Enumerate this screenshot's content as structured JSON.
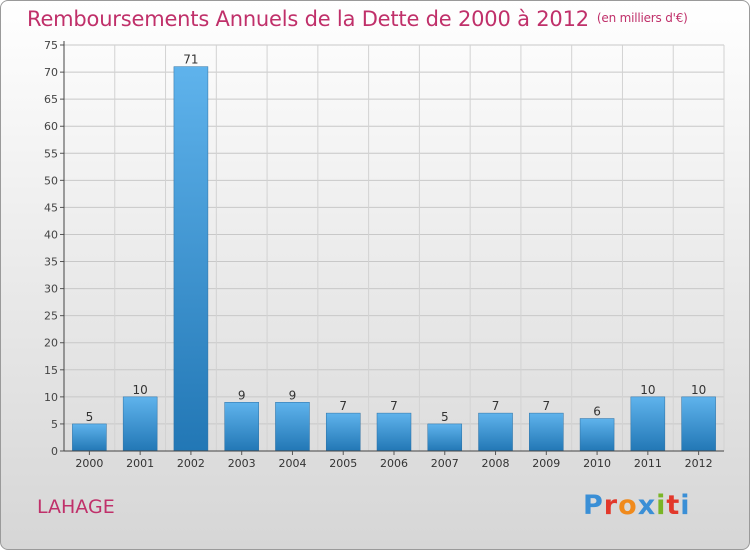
{
  "page": {
    "title": "Remboursements Annuels de la Dette de 2000 à 2012",
    "unit": "(en milliers d'€)",
    "town": "LAHAGE",
    "logo_text": "Proxiti",
    "colors": {
      "title": "#c0306a",
      "bar_top": "#5fb3ec",
      "bar_bottom": "#2277b5",
      "logo": [
        "#3a8fd6",
        "#e2382b",
        "#f08a1c",
        "#3a8fd6",
        "#7ab526",
        "#e2382b",
        "#3a8fd6"
      ]
    }
  },
  "chart_data": {
    "type": "bar",
    "title": "Remboursements Annuels de la Dette de 2000 à 2012",
    "subtitle": "(en milliers d'€)",
    "categories": [
      "2000",
      "2001",
      "2002",
      "2003",
      "2004",
      "2005",
      "2006",
      "2007",
      "2008",
      "2009",
      "2010",
      "2011",
      "2012"
    ],
    "values": [
      5,
      10,
      71,
      9,
      9,
      7,
      7,
      5,
      7,
      7,
      6,
      10,
      10
    ],
    "ylim": [
      0,
      75
    ],
    "yticks": [
      0,
      5,
      10,
      15,
      20,
      25,
      30,
      35,
      40,
      45,
      50,
      55,
      60,
      65,
      70,
      75
    ],
    "grid": true,
    "xlabel": "",
    "ylabel": ""
  }
}
